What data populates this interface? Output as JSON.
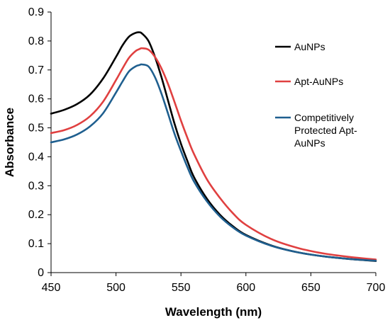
{
  "chart_data": {
    "type": "line",
    "title": "",
    "xlabel": "Wavelength (nm)",
    "ylabel": "Absorbance",
    "xlim": [
      450,
      700
    ],
    "ylim": [
      0,
      0.9
    ],
    "x_ticks": [
      "450",
      "500",
      "550",
      "600",
      "650",
      "700"
    ],
    "y_ticks": [
      "0",
      "0.1",
      "0.2",
      "0.3",
      "0.4",
      "0.5",
      "0.6",
      "0.7",
      "0.8",
      "0.9"
    ],
    "grid": false,
    "legend_position": "right",
    "x": [
      450,
      460,
      470,
      480,
      490,
      500,
      505,
      510,
      515,
      518,
      520,
      525,
      530,
      535,
      540,
      545,
      550,
      555,
      560,
      570,
      580,
      590,
      600,
      620,
      640,
      660,
      680,
      700
    ],
    "series": [
      {
        "name": "AuNPs",
        "color": "#000000",
        "values": [
          0.549,
          0.562,
          0.582,
          0.615,
          0.67,
          0.745,
          0.785,
          0.815,
          0.828,
          0.83,
          0.826,
          0.8,
          0.745,
          0.675,
          0.595,
          0.515,
          0.445,
          0.385,
          0.33,
          0.255,
          0.2,
          0.16,
          0.13,
          0.093,
          0.07,
          0.056,
          0.047,
          0.04
        ]
      },
      {
        "name": "Apt-AuNPs",
        "color": "#e04040",
        "values": [
          0.482,
          0.492,
          0.51,
          0.54,
          0.59,
          0.665,
          0.705,
          0.742,
          0.765,
          0.772,
          0.775,
          0.77,
          0.745,
          0.705,
          0.652,
          0.59,
          0.525,
          0.465,
          0.41,
          0.322,
          0.258,
          0.205,
          0.165,
          0.115,
          0.085,
          0.066,
          0.054,
          0.045
        ]
      },
      {
        "name": "Competitively Protected Apt-AuNPs",
        "color": "#1f5f8f",
        "values": [
          0.45,
          0.46,
          0.477,
          0.505,
          0.55,
          0.622,
          0.66,
          0.695,
          0.712,
          0.717,
          0.719,
          0.712,
          0.675,
          0.618,
          0.55,
          0.48,
          0.42,
          0.364,
          0.315,
          0.246,
          0.194,
          0.156,
          0.128,
          0.092,
          0.07,
          0.056,
          0.047,
          0.041
        ]
      }
    ],
    "legend": {
      "items": [
        {
          "lines": [
            "AuNPs"
          ]
        },
        {
          "lines": [
            "Apt-AuNPs"
          ]
        },
        {
          "lines": [
            "Competitively",
            "Protected Apt-",
            "AuNPs"
          ]
        }
      ]
    }
  }
}
